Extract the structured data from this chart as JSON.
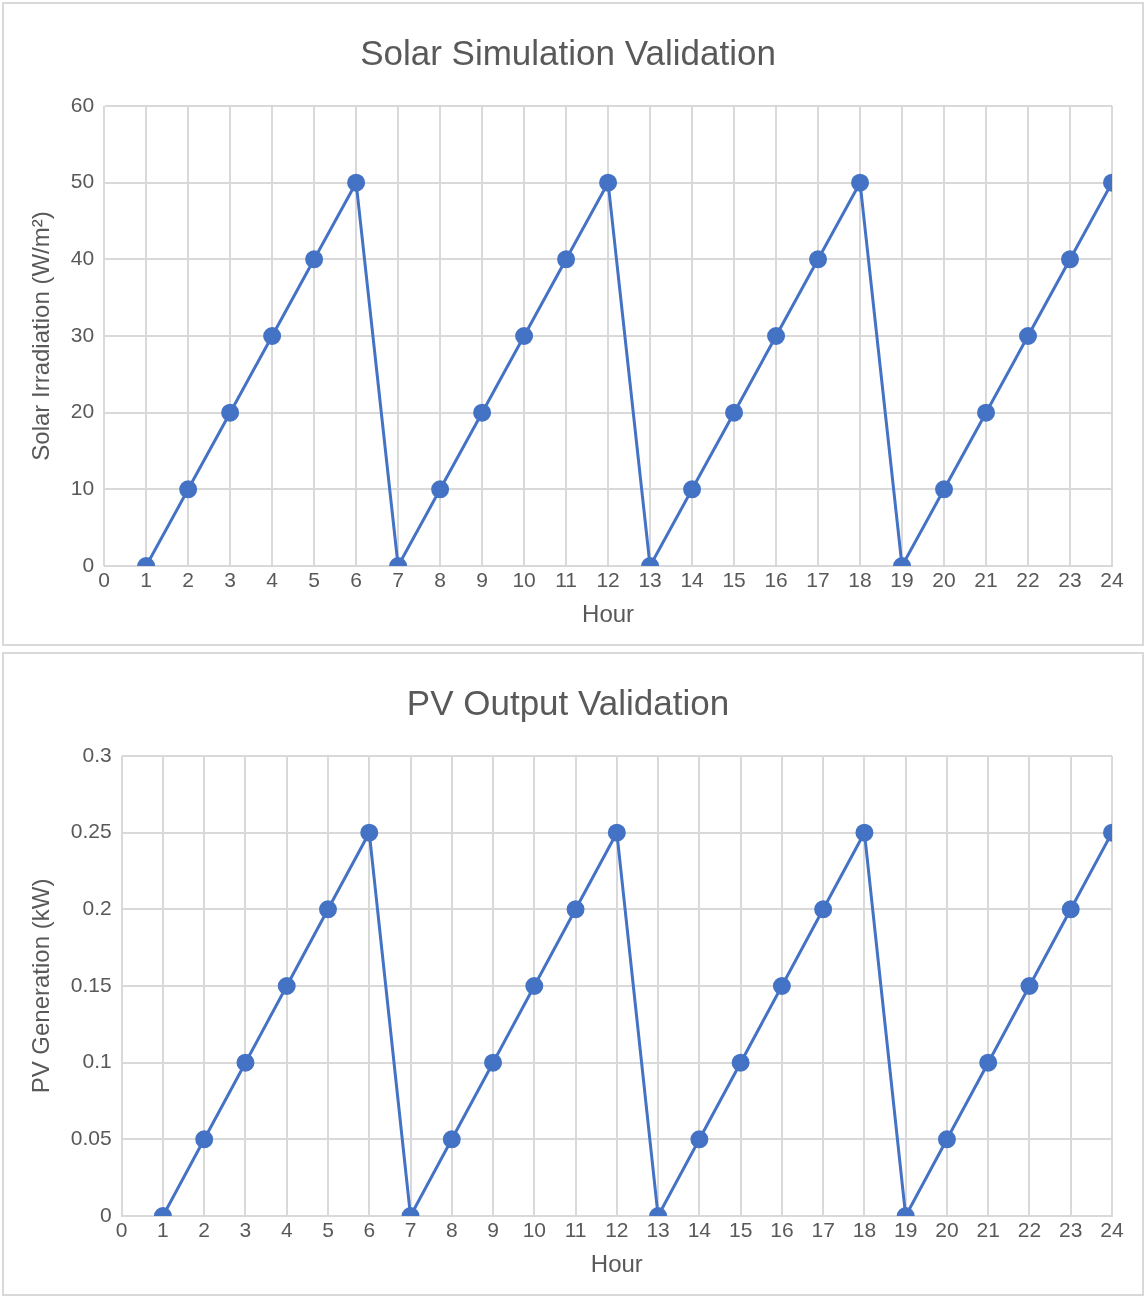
{
  "chart_data": [
    {
      "type": "line",
      "title": "Solar Simulation Validation",
      "xlabel": "Hour",
      "ylabel": "Solar Irradiation (W/m²)",
      "x": [
        1,
        2,
        3,
        4,
        5,
        6,
        7,
        8,
        9,
        10,
        11,
        12,
        13,
        14,
        15,
        16,
        17,
        18,
        19,
        20,
        21,
        22,
        23,
        24
      ],
      "series": [
        {
          "color": "#4472c4",
          "values": [
            0,
            10,
            20,
            30,
            40,
            50,
            0,
            10,
            20,
            30,
            40,
            50,
            0,
            10,
            20,
            30,
            40,
            50,
            0,
            10,
            20,
            30,
            40,
            50
          ]
        }
      ],
      "xlim": [
        0,
        24
      ],
      "xticks": [
        0,
        1,
        2,
        3,
        4,
        5,
        6,
        7,
        8,
        9,
        10,
        11,
        12,
        13,
        14,
        15,
        16,
        17,
        18,
        19,
        20,
        21,
        22,
        23,
        24
      ],
      "ylim": [
        0,
        60
      ],
      "yticks": [
        0,
        10,
        20,
        30,
        40,
        50,
        60
      ],
      "grid": true,
      "legend": false,
      "marker": "circle",
      "line_style": "solid"
    },
    {
      "type": "line",
      "title": "PV Output Validation",
      "xlabel": "Hour",
      "ylabel": "PV Generation (kW)",
      "x": [
        1,
        2,
        3,
        4,
        5,
        6,
        7,
        8,
        9,
        10,
        11,
        12,
        13,
        14,
        15,
        16,
        17,
        18,
        19,
        20,
        21,
        22,
        23,
        24
      ],
      "series": [
        {
          "color": "#4472c4",
          "values": [
            0,
            0.05,
            0.1,
            0.15,
            0.2,
            0.25,
            0,
            0.05,
            0.1,
            0.15,
            0.2,
            0.25,
            0,
            0.05,
            0.1,
            0.15,
            0.2,
            0.25,
            0,
            0.05,
            0.1,
            0.15,
            0.2,
            0.25
          ]
        }
      ],
      "xlim": [
        0,
        24
      ],
      "xticks": [
        0,
        1,
        2,
        3,
        4,
        5,
        6,
        7,
        8,
        9,
        10,
        11,
        12,
        13,
        14,
        15,
        16,
        17,
        18,
        19,
        20,
        21,
        22,
        23,
        24
      ],
      "ylim": [
        0,
        0.3
      ],
      "yticks": [
        0,
        0.05,
        0.1,
        0.15,
        0.2,
        0.25,
        0.3
      ],
      "grid": true,
      "legend": false,
      "marker": "circle",
      "line_style": "solid"
    }
  ]
}
